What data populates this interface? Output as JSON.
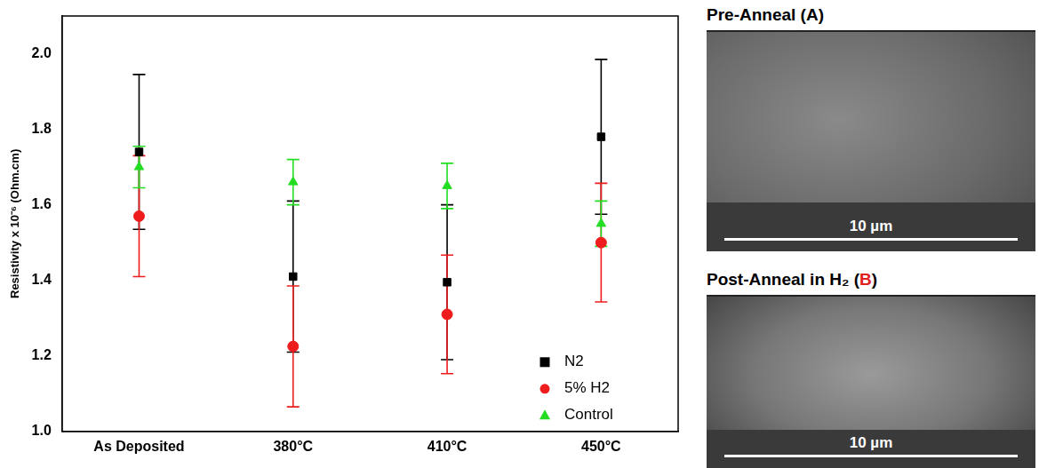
{
  "chart_data": {
    "type": "scatter",
    "y_label": "Resistivity x 10⁻⁶ (Ohm.cm)",
    "categories": [
      "As Deposited",
      "380°C",
      "410°C",
      "450°C"
    ],
    "series": [
      {
        "name": "N2",
        "color": "#000000",
        "marker": "square",
        "values": [
          1.74,
          1.41,
          1.395,
          1.78
        ],
        "errors": [
          0.205,
          0.2,
          0.205,
          0.205
        ]
      },
      {
        "name": "5% H2",
        "color": "#ee1c1c",
        "marker": "circle",
        "values": [
          1.57,
          1.225,
          1.31,
          1.5
        ],
        "errors": [
          0.16,
          0.16,
          0.157,
          0.157
        ]
      },
      {
        "name": "Control",
        "color": "#22dd22",
        "marker": "triangle",
        "values": [
          1.7,
          1.66,
          1.65,
          1.55
        ],
        "errors": [
          0.055,
          0.06,
          0.06,
          0.06
        ]
      }
    ],
    "ylim": [
      1.0,
      2.1
    ],
    "yticks": [
      {
        "value": 1.0,
        "label": "1.0"
      },
      1.2,
      1.4,
      1.6,
      1.8,
      {
        "value": 2.0,
        "label": "2.0"
      }
    ],
    "grid": false,
    "legend": "lower right"
  },
  "images": [
    {
      "title": "Pre-Anneal (A)",
      "letter_color": "#000000",
      "scale_bar": "10 µm"
    },
    {
      "title": "Post-Anneal in H₂ (B)",
      "letter_color": "#e02020",
      "scale_bar": "10 µm"
    }
  ]
}
